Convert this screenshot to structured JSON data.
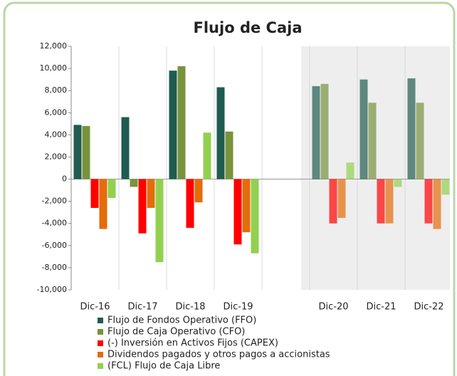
{
  "chart_data": {
    "type": "bar",
    "title": "Flujo de Caja",
    "categories": [
      "Dic-16",
      "Dic-17",
      "Dic-18",
      "Dic-19",
      null,
      "Dic-20",
      "Dic-21",
      "Dic-22"
    ],
    "series": [
      {
        "name": "Flujo de Fondos Operativo (FFO)",
        "color": "#1f5c4f",
        "values": [
          4900,
          5600,
          9800,
          8300,
          null,
          8400,
          9000,
          9100
        ]
      },
      {
        "name": "Flujo de Caja Operativo (CFO)",
        "color": "#77933c",
        "values": [
          4800,
          -700,
          10200,
          4300,
          null,
          8600,
          6900,
          6900
        ]
      },
      {
        "name": "(-) Inversión en Activos Fijos (CAPEX)",
        "color": "#ff0000",
        "values": [
          -2600,
          -4900,
          -4400,
          -5900,
          null,
          -4000,
          -4000,
          -4000
        ]
      },
      {
        "name": "Dividendos pagados y otros pagos a accionistas",
        "color": "#e46c0a",
        "values": [
          -4500,
          -2600,
          -2100,
          -4800,
          null,
          -3500,
          -4000,
          -4500
        ]
      },
      {
        "name": "(FCL) Flujo de Caja Libre",
        "color": "#92d050",
        "values": [
          -1700,
          -7500,
          4200,
          -6700,
          null,
          1500,
          -700,
          -1400
        ]
      }
    ],
    "ylim": [
      -10000,
      12000
    ],
    "yticks": [
      {
        "value": -10000,
        "label": "-10,000"
      },
      {
        "value": -8000,
        "label": "-8,000"
      },
      {
        "value": -6000,
        "label": "-6,000"
      },
      {
        "value": -4000,
        "label": "-4,000"
      },
      {
        "value": -2000,
        "label": "-2,000"
      },
      0,
      {
        "value": 2000,
        "label": "2,000"
      },
      {
        "value": 4000,
        "label": "4,000"
      },
      {
        "value": 6000,
        "label": "6,000"
      },
      {
        "value": 8000,
        "label": "8,000"
      },
      {
        "value": 10000,
        "label": "10,000"
      },
      {
        "value": 12000,
        "label": "12,000"
      }
    ],
    "legend": "bottom"
  }
}
